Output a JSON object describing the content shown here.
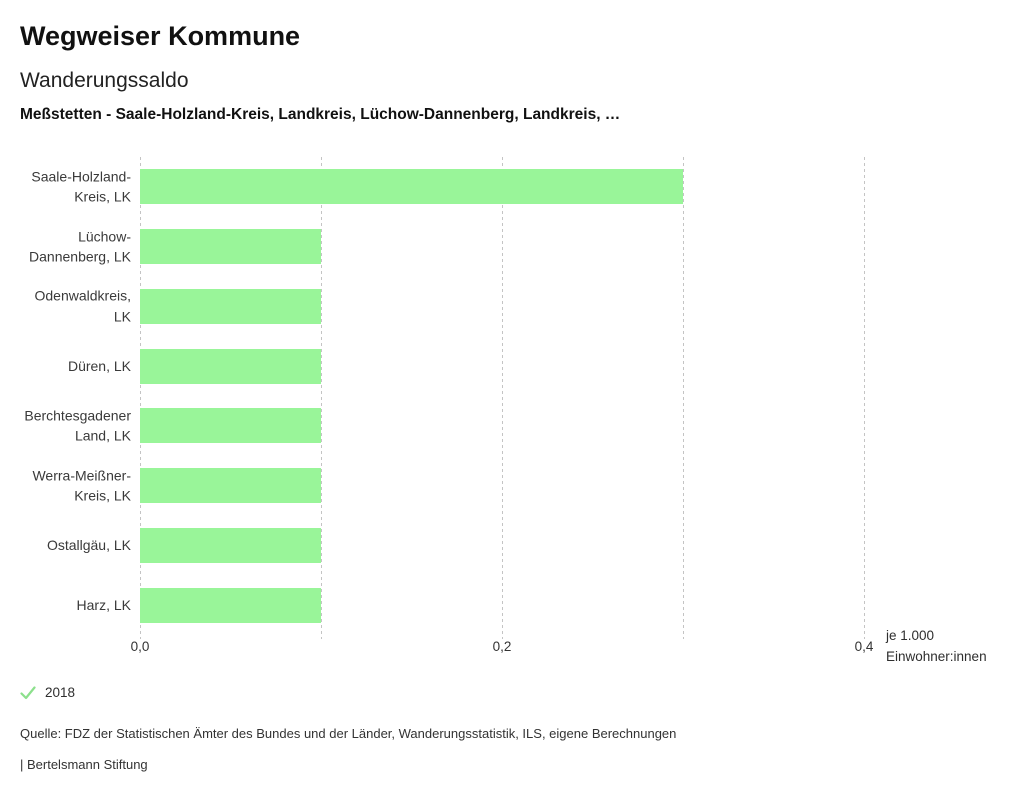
{
  "header": {
    "title": "Wegweiser Kommune",
    "subtitle": "Wanderungssaldo",
    "selection": "Meßstetten - Saale-Holzland-Kreis, Landkreis, Lüchow-Dannenberg, Landkreis, …"
  },
  "chart_data": {
    "type": "bar",
    "orientation": "horizontal",
    "title": "Wanderungssaldo",
    "categories": [
      "Saale-Holzland-Kreis, LK",
      "Lüchow-Dannenberg, LK",
      "Odenwaldkreis, LK",
      "Düren, LK",
      "Berchtesgadener Land, LK",
      "Werra-Meißner-Kreis, LK",
      "Ostallgäu, LK",
      "Harz, LK"
    ],
    "category_lines": [
      [
        "Saale-Holzland-",
        "Kreis, LK"
      ],
      [
        "Lüchow-",
        "Dannenberg, LK"
      ],
      [
        "Odenwaldkreis,",
        "LK"
      ],
      [
        "Düren, LK"
      ],
      [
        "Berchtesgadener",
        "Land, LK"
      ],
      [
        "Werra-Meißner-",
        "Kreis, LK"
      ],
      [
        "Ostallgäu, LK"
      ],
      [
        "Harz, LK"
      ]
    ],
    "series": [
      {
        "name": "2018",
        "values": [
          0.3,
          0.1,
          0.1,
          0.1,
          0.1,
          0.1,
          0.1,
          0.1
        ]
      }
    ],
    "xlim": [
      0,
      0.4
    ],
    "xticks": [
      0,
      0.1,
      0.2,
      0.3,
      0.4
    ],
    "xtick_labels": [
      "0,0",
      "",
      "0,2",
      "",
      "0,4"
    ],
    "xlabel": "je 1.000 Einwohner:innen",
    "unit_lines": [
      "je 1.000",
      "Einwohner:innen"
    ],
    "grid": true,
    "bar_color": "#99f599",
    "gridline_color": "#c4c4c4",
    "legend_position": "bottom-left"
  },
  "legend": {
    "year": "2018",
    "check_color": "#8ce08c"
  },
  "footer": {
    "source": "Quelle: FDZ der Statistischen Ämter des Bundes und der Länder, Wanderungsstatistik, ILS, eigene Berechnungen",
    "branding": "| Bertelsmann Stiftung"
  }
}
